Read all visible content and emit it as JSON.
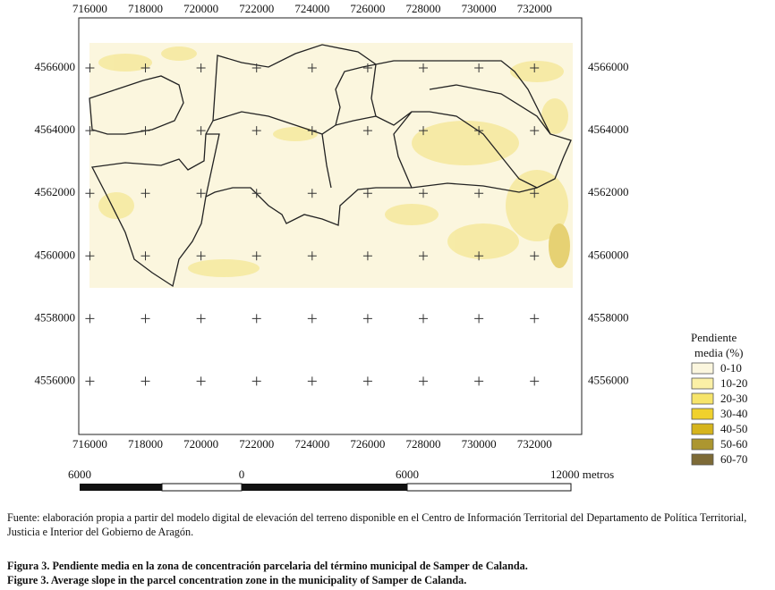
{
  "map": {
    "xticks": [
      716000,
      718000,
      720000,
      722000,
      724000,
      726000,
      728000,
      730000,
      732000
    ],
    "yticks": [
      4566000,
      4564000,
      4562000,
      4560000,
      4558000,
      4556000
    ],
    "xlim": [
      715600,
      733700
    ],
    "ylim": [
      4554300,
      4567600
    ]
  },
  "legend": {
    "title": [
      "Pendiente",
      "media (%)"
    ],
    "items": [
      {
        "label": "0-10",
        "color": "#fbf6de"
      },
      {
        "label": "10-20",
        "color": "#fbf0a6"
      },
      {
        "label": "20-30",
        "color": "#f6e46a"
      },
      {
        "label": "30-40",
        "color": "#f0d12d"
      },
      {
        "label": "40-50",
        "color": "#d6b41c"
      },
      {
        "label": "50-60",
        "color": "#ac9630"
      },
      {
        "label": "60-70",
        "color": "#7d6a36"
      }
    ]
  },
  "scale_bar": {
    "labels": [
      "6000",
      "0",
      "6000",
      "12000 metros"
    ]
  },
  "source": "Fuente: elaboración propia a partir del modelo digital de elevación del terreno disponible en el Centro de Información Territorial del Departamento de Política Territorial, Justicia e Interior del Gobierno de Aragón.",
  "captions": [
    "Figura 3. Pendiente media en la zona de concentración parcelaria del término municipal de Samper de Calanda.",
    "Figure 3. Average slope in the parcel concentration zone in the municipality of Samper de Calanda."
  ]
}
